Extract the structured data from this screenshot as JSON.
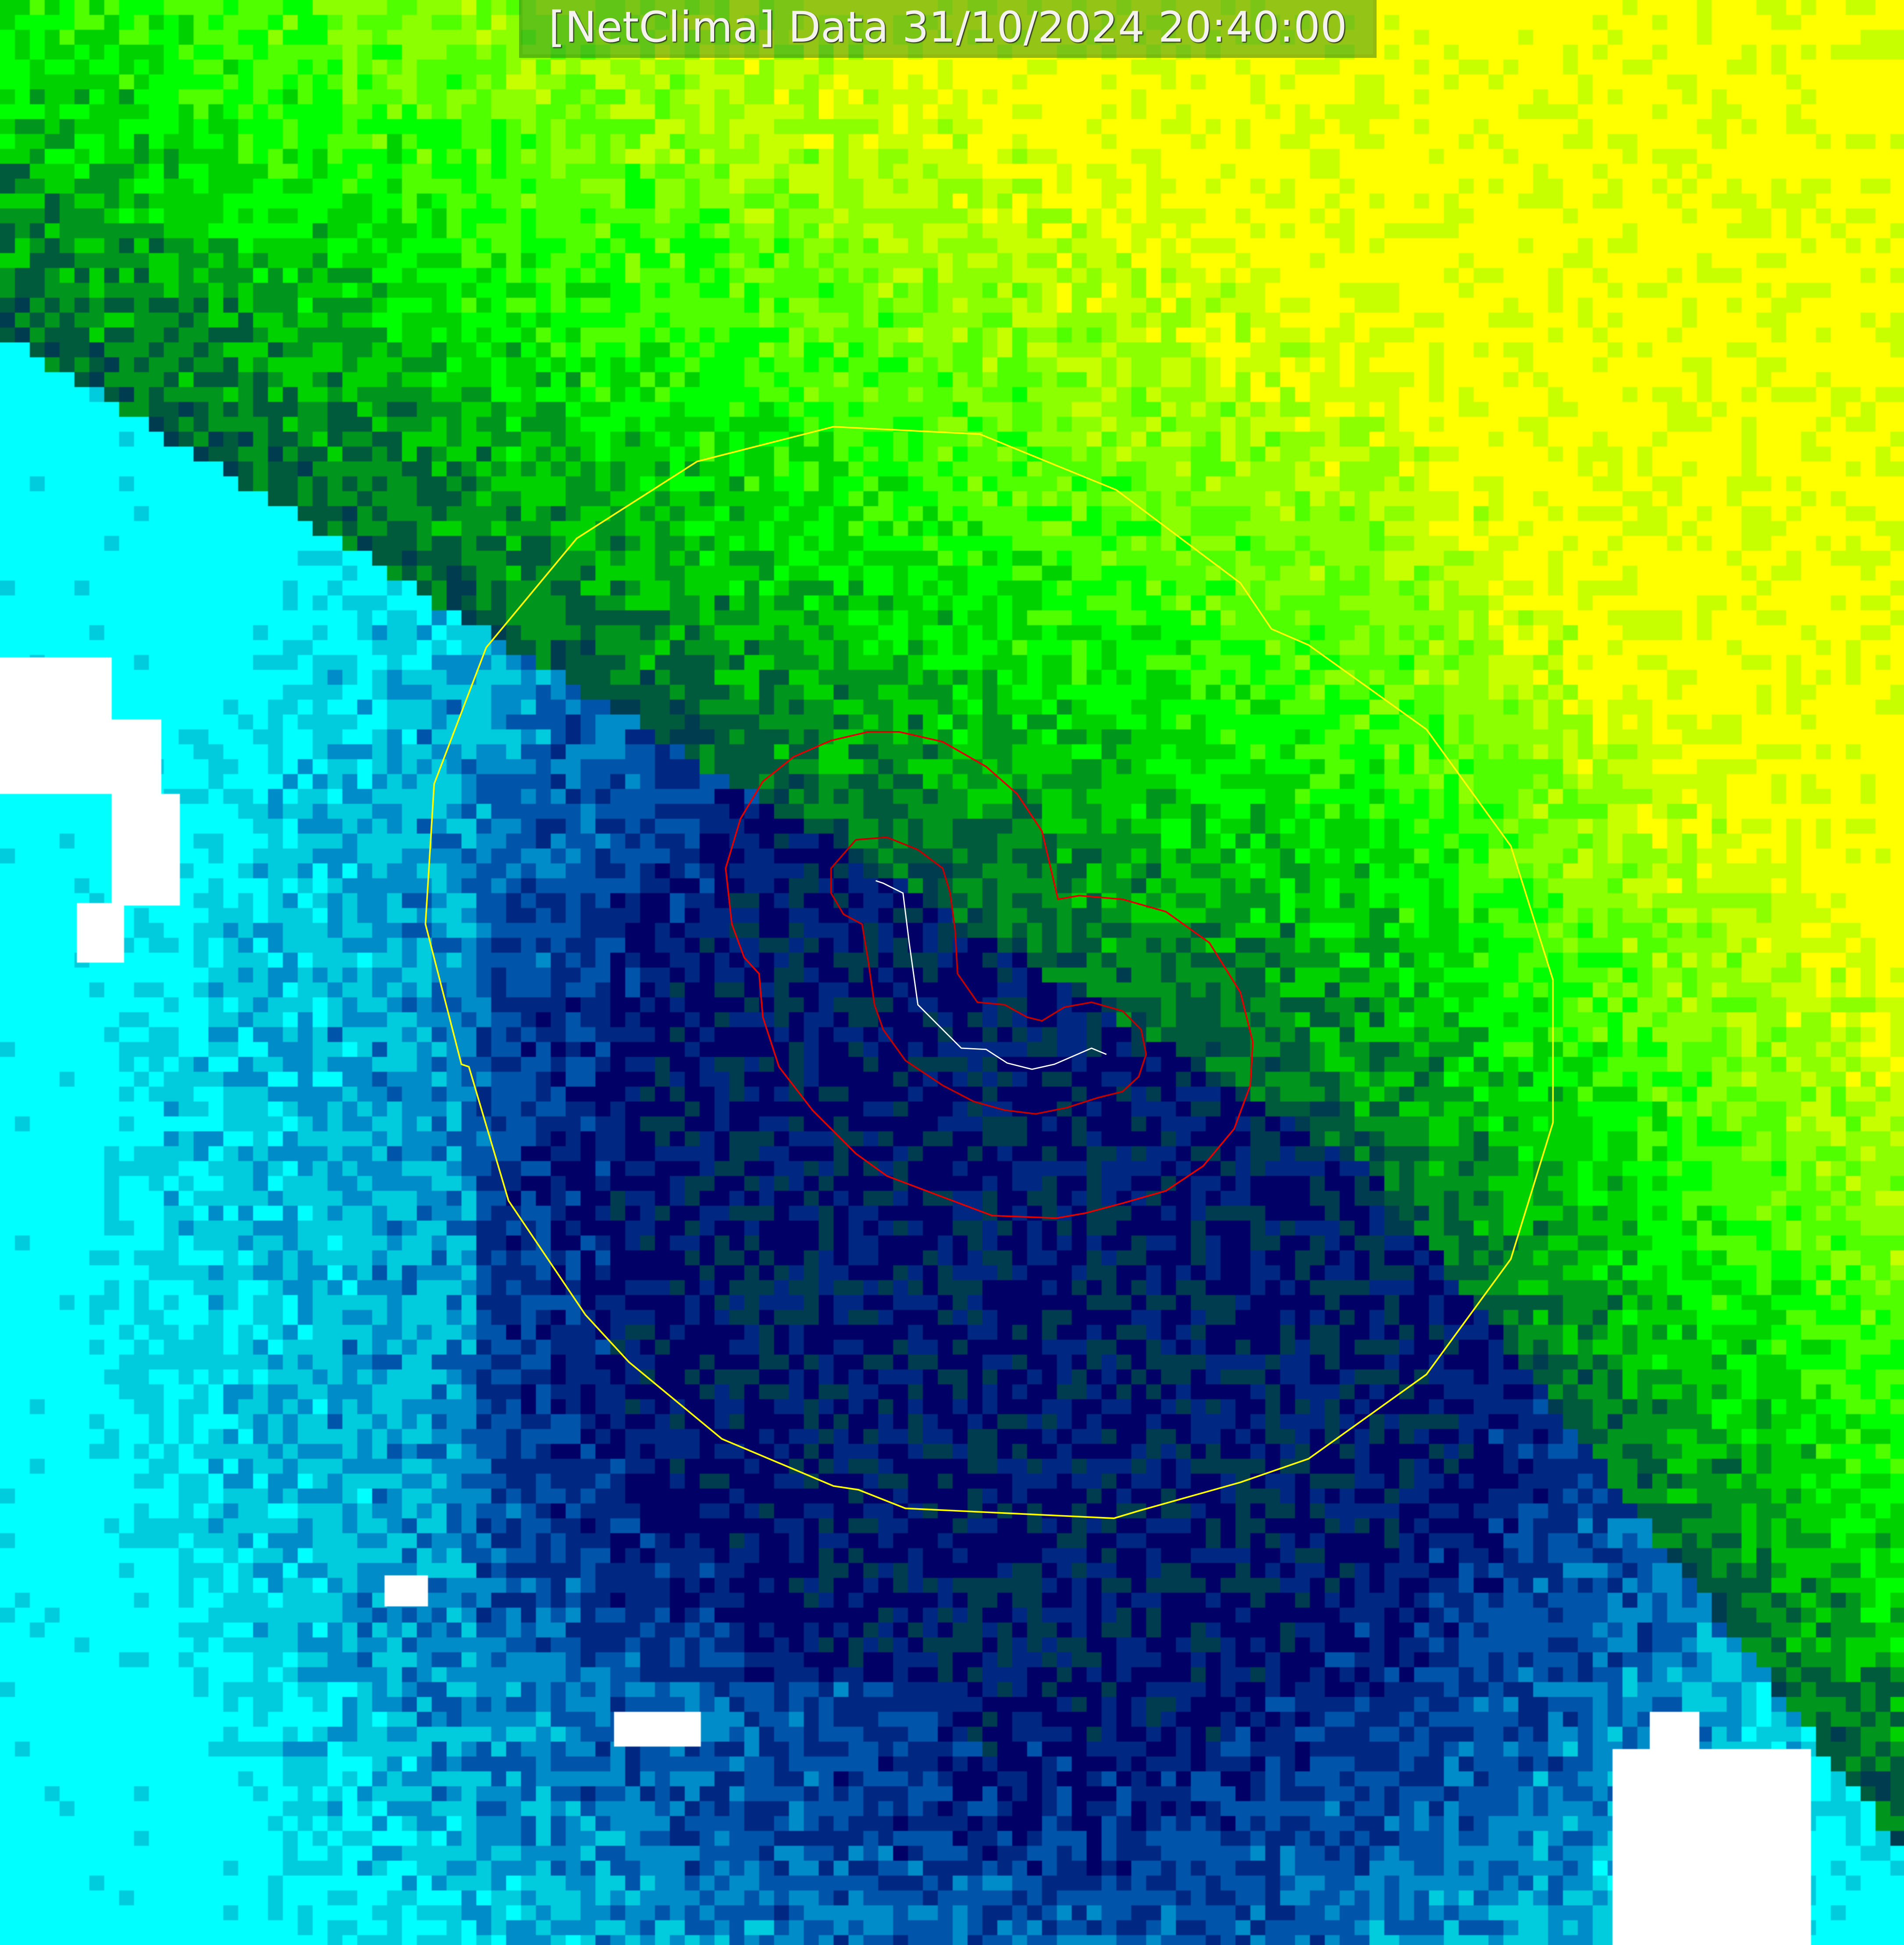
{
  "title": {
    "source": "[NetClima]",
    "label": "Data",
    "datetime": "31/10/2024 20:40:00"
  },
  "colors": {
    "bright_green": "#66ff00",
    "green": "#00cc00",
    "dark_green": "#00553f",
    "navy": "#000066",
    "blue": "#0055aa",
    "cyan": "#00ccdd",
    "white": "#ffffff",
    "outer_contour": "#ffff00",
    "inner_contours": "#e00000",
    "track": "#ffffff"
  },
  "layers": [
    "satellite-imagery",
    "yellow-contour",
    "red-contour-outer",
    "red-contour-inner",
    "storm-track"
  ]
}
